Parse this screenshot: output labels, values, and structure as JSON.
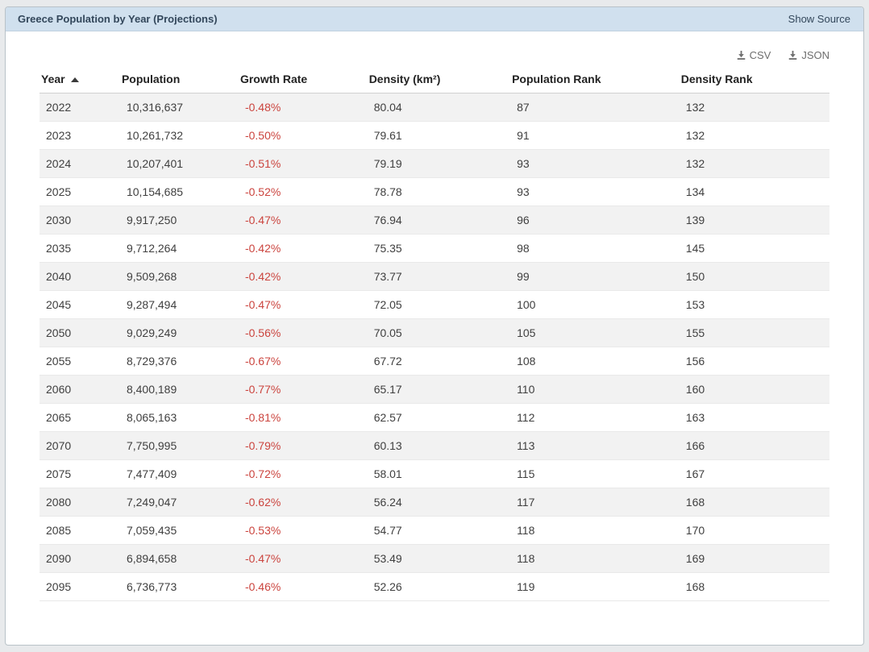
{
  "panel": {
    "title": "Greece Population by Year (Projections)",
    "show_source_label": "Show Source"
  },
  "export": {
    "csv_label": "CSV",
    "json_label": "JSON",
    "icon": "download-icon"
  },
  "table": {
    "columns": [
      "Year",
      "Population",
      "Growth Rate",
      "Density (km²)",
      "Population Rank",
      "Density Rank"
    ],
    "sort_column_index": 0,
    "sort_direction": "asc",
    "negative_column_index": 2,
    "rows": [
      [
        "2022",
        "10,316,637",
        "-0.48%",
        "80.04",
        "87",
        "132"
      ],
      [
        "2023",
        "10,261,732",
        "-0.50%",
        "79.61",
        "91",
        "132"
      ],
      [
        "2024",
        "10,207,401",
        "-0.51%",
        "79.19",
        "93",
        "132"
      ],
      [
        "2025",
        "10,154,685",
        "-0.52%",
        "78.78",
        "93",
        "134"
      ],
      [
        "2030",
        "9,917,250",
        "-0.47%",
        "76.94",
        "96",
        "139"
      ],
      [
        "2035",
        "9,712,264",
        "-0.42%",
        "75.35",
        "98",
        "145"
      ],
      [
        "2040",
        "9,509,268",
        "-0.42%",
        "73.77",
        "99",
        "150"
      ],
      [
        "2045",
        "9,287,494",
        "-0.47%",
        "72.05",
        "100",
        "153"
      ],
      [
        "2050",
        "9,029,249",
        "-0.56%",
        "70.05",
        "105",
        "155"
      ],
      [
        "2055",
        "8,729,376",
        "-0.67%",
        "67.72",
        "108",
        "156"
      ],
      [
        "2060",
        "8,400,189",
        "-0.77%",
        "65.17",
        "110",
        "160"
      ],
      [
        "2065",
        "8,065,163",
        "-0.81%",
        "62.57",
        "112",
        "163"
      ],
      [
        "2070",
        "7,750,995",
        "-0.79%",
        "60.13",
        "113",
        "166"
      ],
      [
        "2075",
        "7,477,409",
        "-0.72%",
        "58.01",
        "115",
        "167"
      ],
      [
        "2080",
        "7,249,047",
        "-0.62%",
        "56.24",
        "117",
        "168"
      ],
      [
        "2085",
        "7,059,435",
        "-0.53%",
        "54.77",
        "118",
        "170"
      ],
      [
        "2090",
        "6,894,658",
        "-0.47%",
        "53.49",
        "118",
        "169"
      ],
      [
        "2095",
        "6,736,773",
        "-0.46%",
        "52.26",
        "119",
        "168"
      ]
    ]
  },
  "colors": {
    "page_background": "#e8eaec",
    "panel_header_background": "#d0e0ee",
    "panel_title_text": "#33475b",
    "row_stripe": "#f2f2f2",
    "negative_value_text": "#cb443e",
    "export_link_text": "#6e6e6e"
  }
}
